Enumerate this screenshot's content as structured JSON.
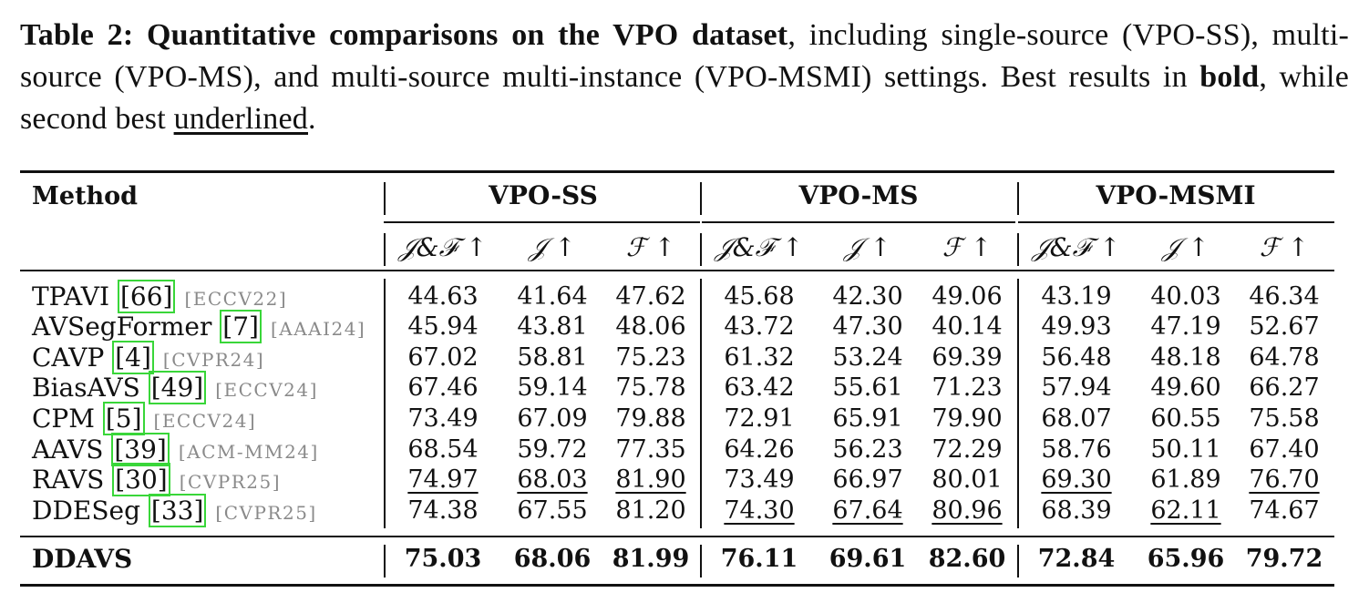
{
  "caption": {
    "label": "Table 2: Quantitative comparisons on the VPO dataset",
    "text1": ", including single-source (VPO-SS), multi-source (VPO-MS), and multi-source multi-instance (VPO-MSMI) settings. Best results in ",
    "bold_word": "bold",
    "text2": ", while second best ",
    "underlined_word": "underlined",
    "text3": "."
  },
  "table": {
    "method_header": "Method",
    "groups": [
      "VPO-SS",
      "VPO-MS",
      "VPO-MSMI"
    ],
    "metrics": [
      "𝒥&ℱ ↑",
      "𝒥 ↑",
      "ℱ ↑",
      "𝒥&ℱ ↑",
      "𝒥 ↑",
      "ℱ ↑",
      "𝒥&ℱ ↑",
      "𝒥 ↑",
      "ℱ ↑"
    ],
    "rows": [
      {
        "name": "TPAVI",
        "ref": "[66]",
        "venue": "[ECCV22]",
        "values": [
          "44.63",
          "41.64",
          "47.62",
          "45.68",
          "42.30",
          "49.06",
          "43.19",
          "40.03",
          "46.34"
        ]
      },
      {
        "name": "AVSegFormer",
        "ref": "[7]",
        "venue": "[AAAI24]",
        "values": [
          "45.94",
          "43.81",
          "48.06",
          "43.72",
          "47.30",
          "40.14",
          "49.93",
          "47.19",
          "52.67"
        ]
      },
      {
        "name": "CAVP",
        "ref": "[4]",
        "venue": "[CVPR24]",
        "values": [
          "67.02",
          "58.81",
          "75.23",
          "61.32",
          "53.24",
          "69.39",
          "56.48",
          "48.18",
          "64.78"
        ]
      },
      {
        "name": "BiasAVS",
        "ref": "[49]",
        "venue": "[ECCV24]",
        "values": [
          "67.46",
          "59.14",
          "75.78",
          "63.42",
          "55.61",
          "71.23",
          "57.94",
          "49.60",
          "66.27"
        ]
      },
      {
        "name": "CPM",
        "ref": "[5]",
        "venue": "[ECCV24]",
        "values": [
          "73.49",
          "67.09",
          "79.88",
          "72.91",
          "65.91",
          "79.90",
          "68.07",
          "60.55",
          "75.58"
        ]
      },
      {
        "name": "AAVS",
        "ref": "[39]",
        "venue": "[ACM-MM24]",
        "values": [
          "68.54",
          "59.72",
          "77.35",
          "64.26",
          "56.23",
          "72.29",
          "58.76",
          "50.11",
          "67.40"
        ]
      },
      {
        "name": "RAVS",
        "ref": "[30]",
        "venue": "[CVPR25]",
        "values": [
          "74.97",
          "68.03",
          "81.90",
          "73.49",
          "66.97",
          "80.01",
          "69.30",
          "61.89",
          "76.70"
        ],
        "underlined": [
          0,
          1,
          2,
          6,
          8
        ]
      },
      {
        "name": "DDESeg",
        "ref": "[33]",
        "venue": "[CVPR25]",
        "values": [
          "74.38",
          "67.55",
          "81.20",
          "74.30",
          "67.64",
          "80.96",
          "68.39",
          "62.11",
          "74.67"
        ],
        "underlined": [
          3,
          4,
          5,
          7
        ]
      }
    ],
    "ours": {
      "name": "DDAVS",
      "values": [
        "75.03",
        "68.06",
        "81.99",
        "76.11",
        "69.61",
        "82.60",
        "72.84",
        "65.96",
        "79.72"
      ]
    }
  }
}
